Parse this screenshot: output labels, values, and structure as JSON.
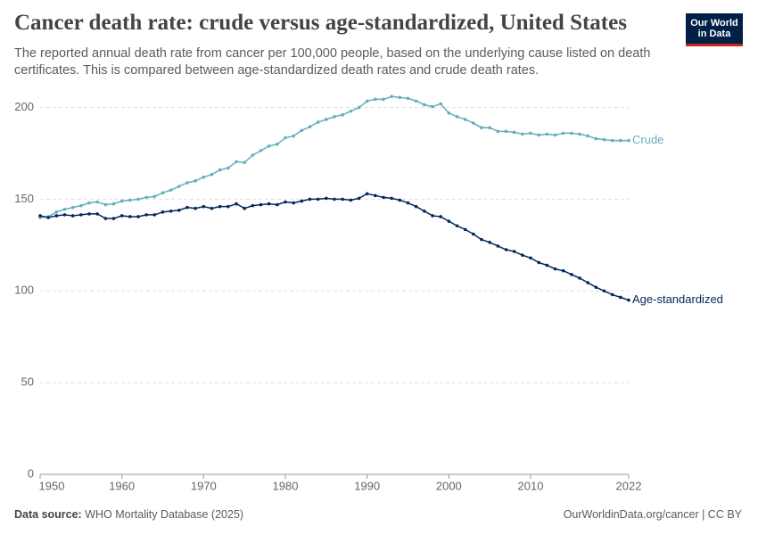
{
  "header": {
    "logo": [
      "Our World",
      "in Data"
    ]
  },
  "chart_data": {
    "type": "line",
    "title": "Cancer death rate: crude versus age-standardized, United States",
    "subtitle": "The reported annual death rate from cancer per 100,000 people, based on the underlying cause listed on death certificates. This is compared between age-standardized death rates and crude death rates.",
    "x": [
      1950,
      1951,
      1952,
      1953,
      1954,
      1955,
      1956,
      1957,
      1958,
      1959,
      1960,
      1961,
      1962,
      1963,
      1964,
      1965,
      1966,
      1967,
      1968,
      1969,
      1970,
      1971,
      1972,
      1973,
      1974,
      1975,
      1976,
      1977,
      1978,
      1979,
      1980,
      1981,
      1982,
      1983,
      1984,
      1985,
      1986,
      1987,
      1988,
      1989,
      1990,
      1991,
      1992,
      1993,
      1994,
      1995,
      1996,
      1997,
      1998,
      1999,
      2000,
      2001,
      2002,
      2003,
      2004,
      2005,
      2006,
      2007,
      2008,
      2009,
      2010,
      2011,
      2012,
      2013,
      2014,
      2015,
      2016,
      2017,
      2018,
      2019,
      2020,
      2021,
      2022
    ],
    "series": [
      {
        "name": "Crude",
        "color": "#62b0ba",
        "values": [
          140,
          140.5,
          143,
          144.5,
          145.5,
          146.5,
          148,
          148.5,
          147,
          147.5,
          149,
          149.5,
          150,
          151,
          151.5,
          153.5,
          155,
          157,
          159,
          160,
          162,
          163.5,
          166,
          167,
          170.5,
          170,
          174,
          176.5,
          179,
          180,
          183.5,
          184.5,
          187.5,
          189.5,
          192,
          193.5,
          195,
          196,
          198,
          200,
          203.5,
          204.5,
          204.5,
          206,
          205.5,
          205,
          203.5,
          201.5,
          200.5,
          202,
          197,
          195,
          193.5,
          191.5,
          189,
          189,
          187,
          187,
          186.5,
          185.5,
          186,
          185,
          185.5,
          185,
          186,
          186,
          185.5,
          184.5,
          183,
          182.5,
          182,
          182,
          182
        ]
      },
      {
        "name": "Age-standardized",
        "color": "#00295b",
        "values": [
          141,
          140,
          141,
          141.5,
          141,
          141.5,
          142,
          142,
          139.5,
          139.5,
          141,
          140.5,
          140.5,
          141.5,
          141.5,
          143,
          143.5,
          144,
          145.5,
          145,
          146,
          145,
          146,
          146,
          147.5,
          145,
          146.5,
          147,
          147.5,
          147,
          148.5,
          148,
          149,
          150,
          150,
          150.5,
          150,
          150,
          149.5,
          150.5,
          153,
          152,
          151,
          150.5,
          149.5,
          148,
          146,
          143.5,
          141,
          140.5,
          138,
          135.5,
          133.5,
          131,
          128,
          126.5,
          124.5,
          122.5,
          121.5,
          119.5,
          118,
          115.5,
          114,
          112,
          111,
          109,
          107,
          104.5,
          102,
          100,
          98,
          96.5,
          95
        ]
      }
    ],
    "xlim": [
      1950,
      2022
    ],
    "xticks": [
      1950,
      1960,
      1970,
      1980,
      1990,
      2000,
      2010,
      2022
    ],
    "ylim": [
      0,
      210
    ],
    "yticks": [
      0,
      50,
      100,
      150,
      200
    ],
    "grid": true
  },
  "footer": {
    "source_label": "Data source:",
    "source": "WHO Mortality Database (2025)",
    "credit": "OurWorldinData.org/cancer | CC BY"
  }
}
